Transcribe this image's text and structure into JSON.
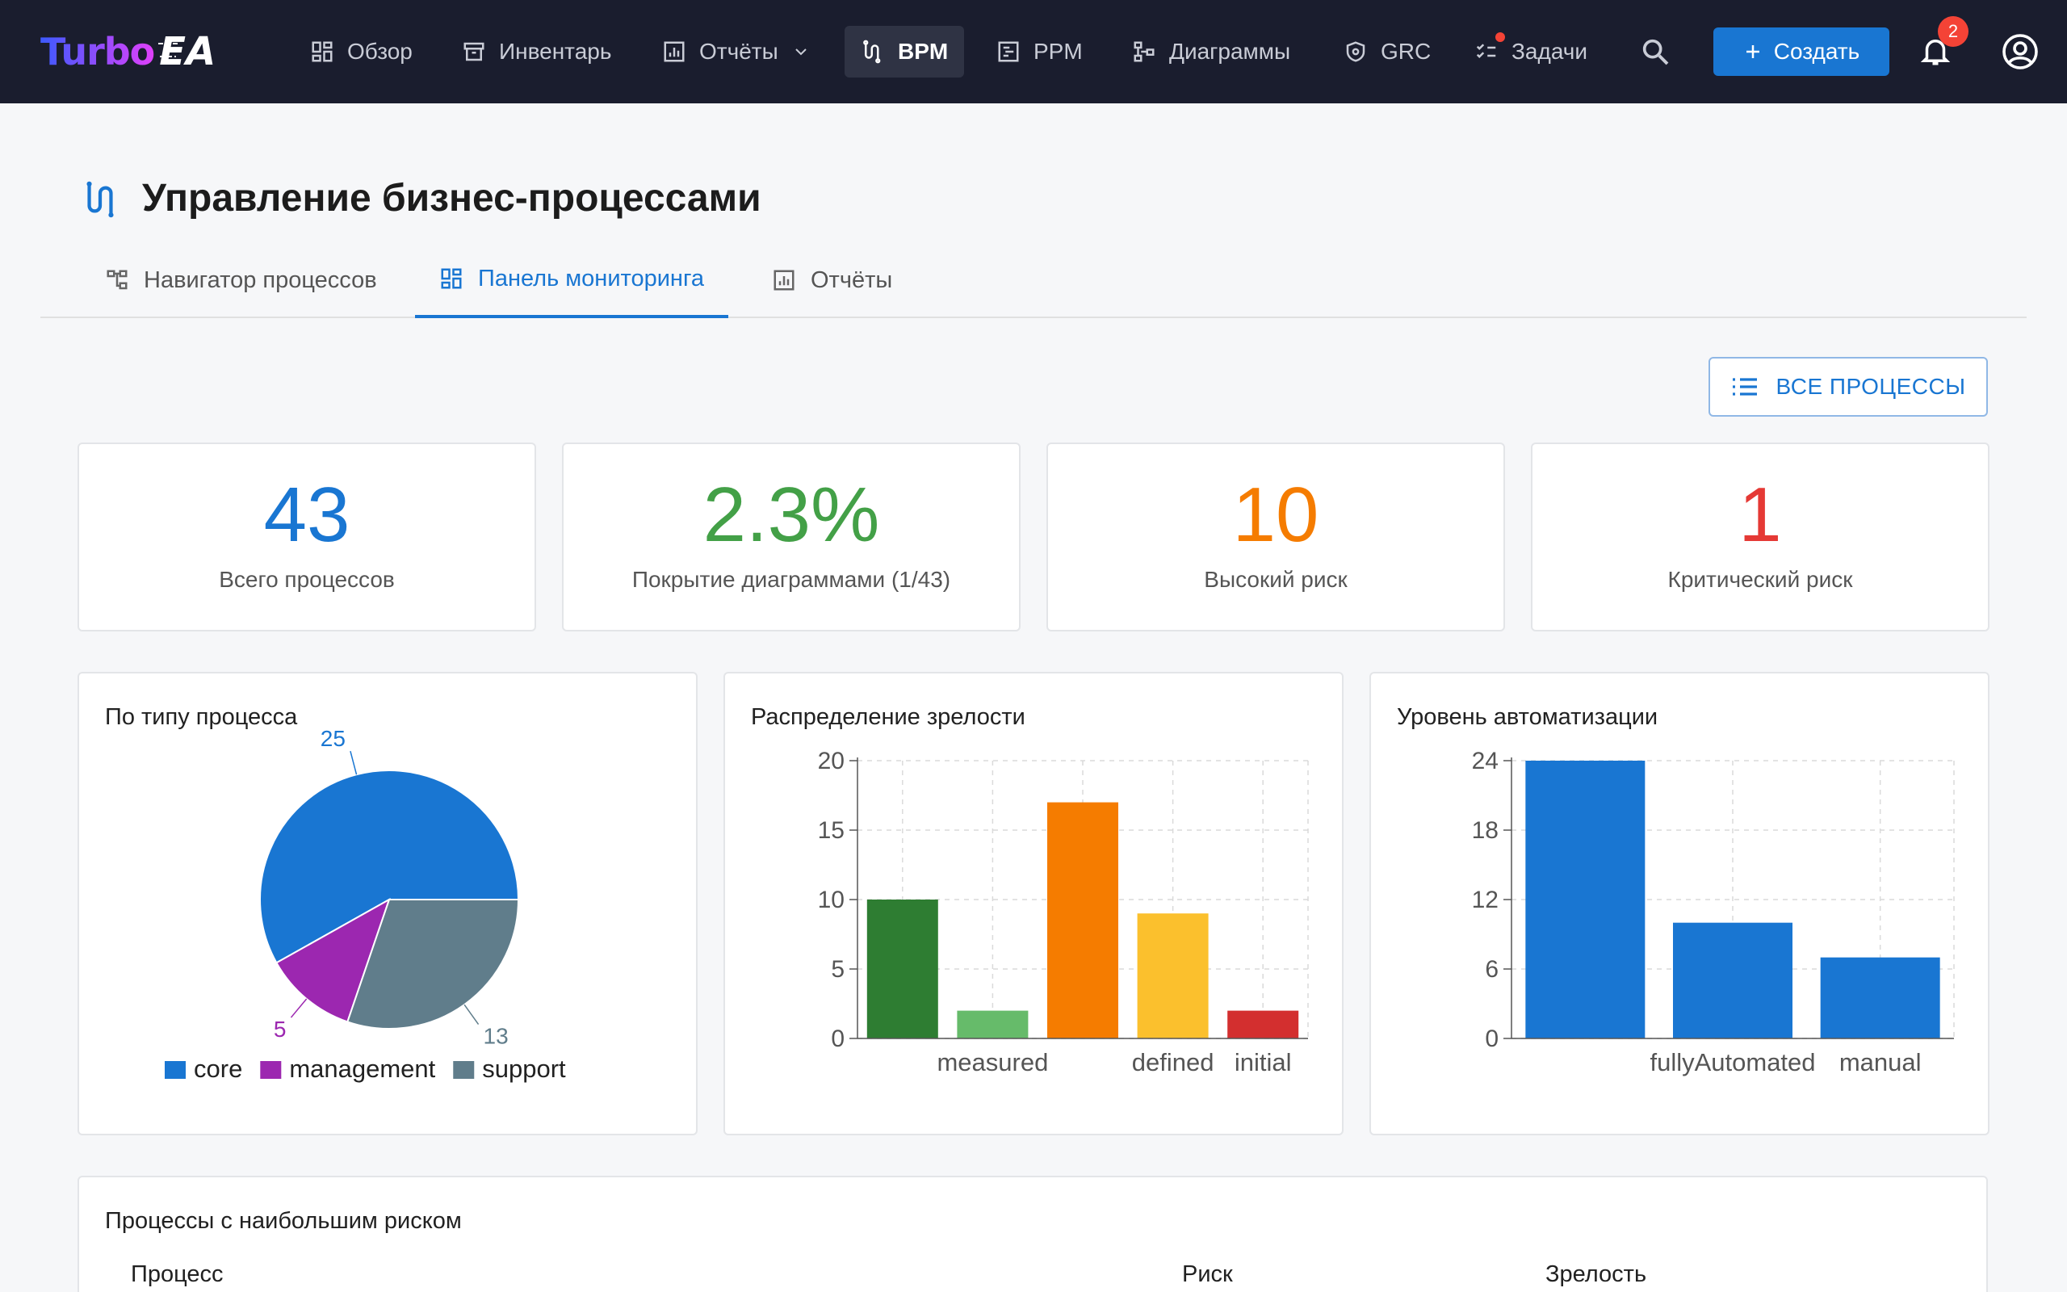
{
  "app": {
    "brand_left": "Turbo",
    "brand_right": "EA"
  },
  "nav": [
    {
      "label": "Обзор",
      "icon": "dashboard-icon"
    },
    {
      "label": "Инвентарь",
      "icon": "archive-icon"
    },
    {
      "label": "Отчёты",
      "icon": "report-icon"
    },
    {
      "label": "BPM",
      "icon": "route-icon"
    },
    {
      "label": "PPM",
      "icon": "gantt-icon"
    },
    {
      "label": "Диаграммы",
      "icon": "schema-icon"
    },
    {
      "label": "GRC",
      "icon": "shield-icon"
    },
    {
      "label": "Задачи",
      "icon": "checklist-icon"
    }
  ],
  "toolbar": {
    "create_label": "Создать",
    "notifications_count": "2"
  },
  "page": {
    "title": "Управление бизнес-процессами",
    "tabs": [
      "Навигатор процессов",
      "Панель мониторинга",
      "Отчёты"
    ],
    "all_processes_label": "ВСЕ ПРОЦЕССЫ"
  },
  "kpis": [
    {
      "value": "43",
      "label": "Всего процессов",
      "color": "#1976d2"
    },
    {
      "value": "2.3%",
      "label": "Покрытие диаграммами (1/43)",
      "color": "#43a047"
    },
    {
      "value": "10",
      "label": "Высокий риск",
      "color": "#f57c00"
    },
    {
      "value": "1",
      "label": "Критический риск",
      "color": "#e53935"
    }
  ],
  "chart_data": [
    {
      "type": "pie",
      "title": "По типу процесса",
      "categories": [
        "core",
        "management",
        "support"
      ],
      "values": [
        25,
        5,
        13
      ],
      "colors": [
        "#1976d2",
        "#9c27b0",
        "#607d8b"
      ],
      "data_labels": [
        "25",
        "5",
        "13"
      ],
      "legend_position": "bottom"
    },
    {
      "type": "bar",
      "title": "Распределение зрелости",
      "categories": [
        "",
        "measured",
        "",
        "defined",
        "initial"
      ],
      "values": [
        10,
        2,
        17,
        9,
        2
      ],
      "colors": [
        "#2e7d32",
        "#66bb6a",
        "#f57c00",
        "#fbc02d",
        "#d32f2f"
      ],
      "ylim": [
        0,
        20
      ],
      "yticks": [
        "0",
        "5",
        "10",
        "15",
        "20"
      ],
      "grid": true
    },
    {
      "type": "bar",
      "title": "Уровень автоматизации",
      "categories": [
        "",
        "fullyAutomated",
        "manual"
      ],
      "values": [
        24,
        10,
        7
      ],
      "colors": [
        "#1976d2",
        "#1976d2",
        "#1976d2"
      ],
      "ylim": [
        0,
        24
      ],
      "yticks": [
        "0",
        "6",
        "12",
        "18",
        "24"
      ],
      "grid": true
    }
  ],
  "risk_table": {
    "title": "Процессы с наибольшим риском",
    "columns": [
      "Процесс",
      "Риск",
      "Зрелость"
    ]
  }
}
